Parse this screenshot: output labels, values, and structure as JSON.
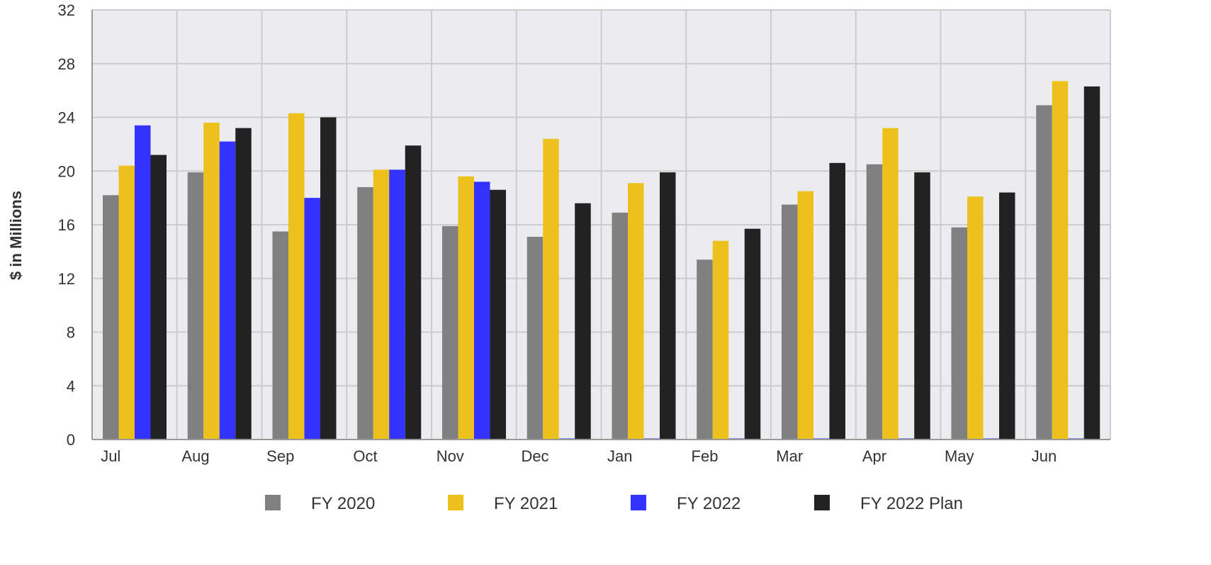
{
  "chart_data": {
    "type": "bar",
    "title": "",
    "xlabel": "",
    "ylabel": "$ in Millions",
    "ylim": [
      0,
      32
    ],
    "yticks": [
      0,
      4,
      8,
      12,
      16,
      20,
      24,
      28,
      32
    ],
    "grid": true,
    "legend_position": "bottom",
    "categories": [
      "Jul",
      "Aug",
      "Sep",
      "Oct",
      "Nov",
      "Dec",
      "Jan",
      "Feb",
      "Mar",
      "Apr",
      "May",
      "Jun"
    ],
    "series": [
      {
        "name": "FY 2020",
        "color": "#808080",
        "values": [
          18.2,
          19.9,
          15.5,
          18.8,
          15.9,
          15.1,
          16.9,
          13.4,
          17.5,
          20.5,
          15.8,
          24.9
        ]
      },
      {
        "name": "FY 2021",
        "color": "#ecc11c",
        "values": [
          20.4,
          23.6,
          24.3,
          20.1,
          19.6,
          22.4,
          19.1,
          14.8,
          18.5,
          23.2,
          18.1,
          26.7
        ]
      },
      {
        "name": "FY 2022",
        "color": "#3333ff",
        "values": [
          23.4,
          22.2,
          18.0,
          20.1,
          19.2,
          0,
          0,
          0,
          0,
          0,
          0,
          0
        ]
      },
      {
        "name": "FY 2022 Plan",
        "color": "#222222",
        "values": [
          21.2,
          23.2,
          24.0,
          21.9,
          18.6,
          17.6,
          19.9,
          15.7,
          20.6,
          19.9,
          18.4,
          26.3
        ]
      }
    ]
  },
  "colors": {
    "plot_background": "#ebebf0",
    "grid": "#cccccc"
  }
}
